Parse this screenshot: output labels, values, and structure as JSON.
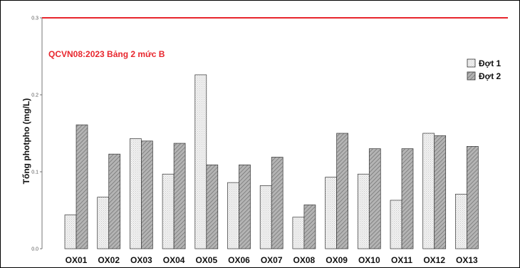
{
  "chart_data": {
    "type": "bar",
    "ylabel": "Tổng photpho (mg/L)",
    "xlabel": "",
    "ylim": [
      0,
      0.3
    ],
    "yticks": [
      "0.0",
      "0.1",
      "0.2",
      "0.3"
    ],
    "categories": [
      "OX01",
      "OX02",
      "OX03",
      "OX04",
      "OX05",
      "OX06",
      "OX07",
      "OX08",
      "OX09",
      "OX10",
      "OX11",
      "OX12",
      "OX13"
    ],
    "series": [
      {
        "name": "Đợt 1",
        "values": [
          0.044,
          0.067,
          0.143,
          0.097,
          0.226,
          0.086,
          0.082,
          0.041,
          0.093,
          0.097,
          0.063,
          0.15,
          0.071
        ]
      },
      {
        "name": "Đợt 2",
        "values": [
          0.161,
          0.123,
          0.14,
          0.137,
          0.109,
          0.109,
          0.119,
          0.057,
          0.15,
          0.13,
          0.13,
          0.147,
          0.133
        ]
      }
    ],
    "reference_line": {
      "value": 0.3,
      "label": "QCVN08:2023 Bảng 2 mức B",
      "color": "#e8262d"
    },
    "legend_position": "top-right",
    "grid": false,
    "colors": {
      "series1": "#eeeeee",
      "series2": "#a9a9a9",
      "axis": "#555555"
    }
  }
}
